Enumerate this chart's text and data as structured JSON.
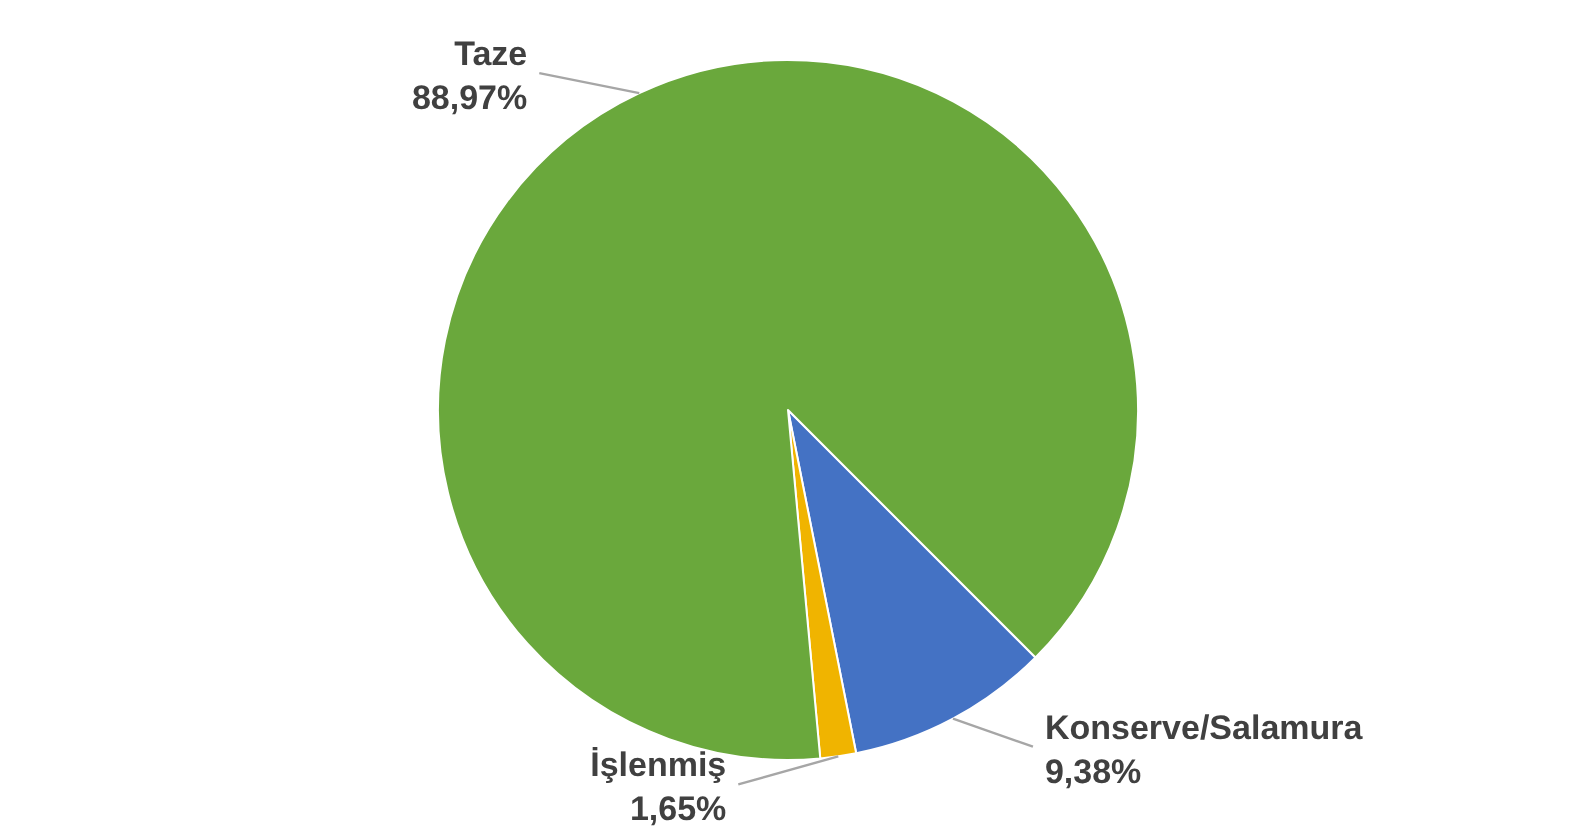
{
  "chart_data": {
    "type": "pie",
    "categories": [
      "Konserve/Salamura",
      "İşlenmiş",
      "Taze"
    ],
    "values": [
      9.38,
      1.65,
      88.97
    ],
    "colors": [
      "#4472c4",
      "#f0b400",
      "#6aa83c"
    ],
    "value_labels": [
      "9,38%",
      "1,65%",
      "88,97%"
    ]
  }
}
